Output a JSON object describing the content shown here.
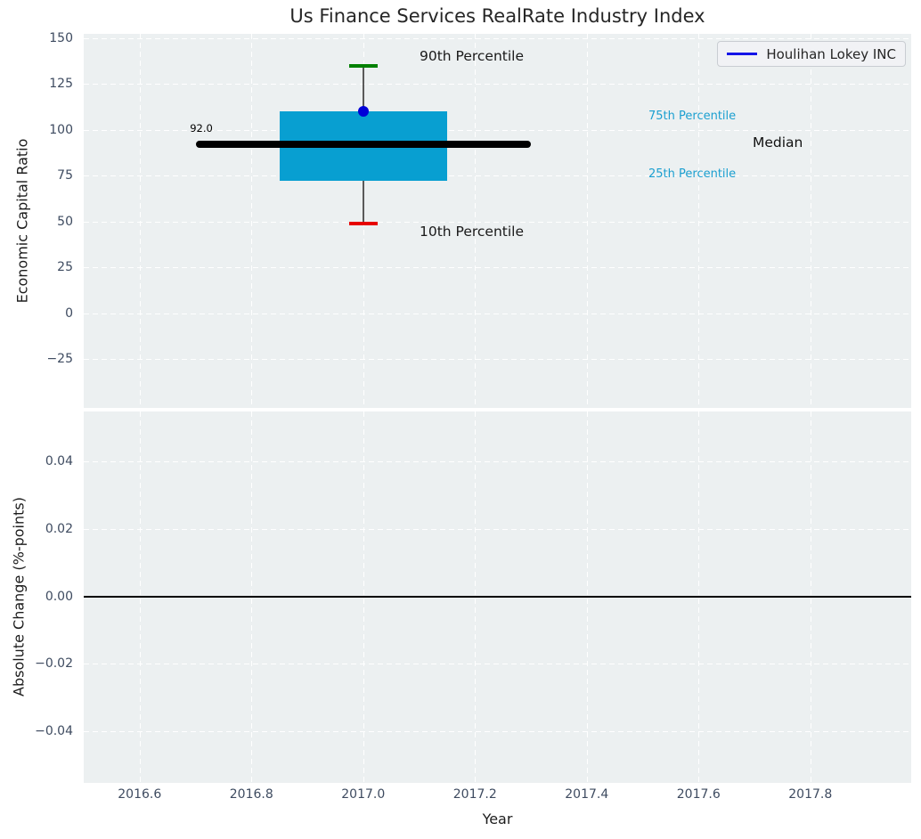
{
  "title": "Us Finance Services RealRate Industry Index",
  "colors": {
    "axes_background": "#ecf0f1",
    "grid": "#ffffff",
    "box_fill": "#089fd1",
    "median_line": "#000000",
    "whisker": "#5a5a5a",
    "p90_cap": "#008000",
    "p10_cap": "#e60000",
    "company_marker": "#0000d8",
    "legend_line": "#1414e8",
    "percentile_label": "#1b9fd0",
    "tick_label": "#3e4b60",
    "zero_line": "#000000"
  },
  "chart_data": [
    {
      "type": "box",
      "title": "Us Finance Services RealRate Industry Index",
      "xlabel": "",
      "ylabel": "Economic Capital Ratio",
      "grid": true,
      "legend_position": "upper right",
      "legend": [
        {
          "label": "Houlihan Lokey INC",
          "color": "#1414e8"
        }
      ],
      "x_center": 2017.0,
      "box_x_range": [
        2016.85,
        2017.15
      ],
      "median_x_range": [
        2016.7,
        2017.3
      ],
      "box_stats": {
        "p10": 49,
        "p25": 72,
        "median": 92.0,
        "p75": 110,
        "p90": 135
      },
      "company_point": {
        "name": "Houlihan Lokey INC",
        "x": 2017.0,
        "y": 110
      },
      "annotations": {
        "p90": {
          "text": "90th Percentile"
        },
        "p10": {
          "text": "10th Percentile"
        },
        "p75": {
          "text": "75th Percentile"
        },
        "p25": {
          "text": "25th Percentile"
        },
        "median": {
          "text": "Median"
        },
        "median_value": {
          "text": "92.0"
        }
      },
      "ylim": [
        -52,
        152
      ],
      "xlim": [
        2016.5,
        2017.98
      ],
      "yticks": [
        {
          "v": 150,
          "label": "150"
        },
        {
          "v": 125,
          "label": "125"
        },
        {
          "v": 100,
          "label": "100"
        },
        {
          "v": 75,
          "label": "75"
        },
        {
          "v": 50,
          "label": "50"
        },
        {
          "v": 25,
          "label": "25"
        },
        {
          "v": 0,
          "label": "0"
        },
        {
          "v": -25,
          "label": "−25"
        }
      ],
      "xticks": [
        {
          "v": 2016.6,
          "label": "2016.6"
        },
        {
          "v": 2016.8,
          "label": "2016.8"
        },
        {
          "v": 2017.0,
          "label": "2017.0"
        },
        {
          "v": 2017.2,
          "label": "2017.2"
        },
        {
          "v": 2017.4,
          "label": "2017.4"
        },
        {
          "v": 2017.6,
          "label": "2017.6"
        },
        {
          "v": 2017.8,
          "label": "2017.8"
        }
      ]
    },
    {
      "type": "line",
      "title": "",
      "xlabel": "Year",
      "ylabel": "Absolute Change (%-points)",
      "grid": true,
      "series": [
        {
          "name": "Absolute Change zero baseline",
          "values": [
            0.0
          ],
          "color": "#000000"
        }
      ],
      "zero_line": 0.0,
      "ylim": [
        -0.055,
        0.055
      ],
      "xlim": [
        2016.5,
        2017.98
      ],
      "yticks": [
        {
          "v": 0.04,
          "label": "0.04"
        },
        {
          "v": 0.02,
          "label": "0.02"
        },
        {
          "v": 0.0,
          "label": "0.00"
        },
        {
          "v": -0.02,
          "label": "−0.02"
        },
        {
          "v": -0.04,
          "label": "−0.04"
        }
      ],
      "xticks": [
        {
          "v": 2016.6,
          "label": "2016.6"
        },
        {
          "v": 2016.8,
          "label": "2016.8"
        },
        {
          "v": 2017.0,
          "label": "2017.0"
        },
        {
          "v": 2017.2,
          "label": "2017.2"
        },
        {
          "v": 2017.4,
          "label": "2017.4"
        },
        {
          "v": 2017.6,
          "label": "2017.6"
        },
        {
          "v": 2017.8,
          "label": "2017.8"
        }
      ]
    }
  ]
}
